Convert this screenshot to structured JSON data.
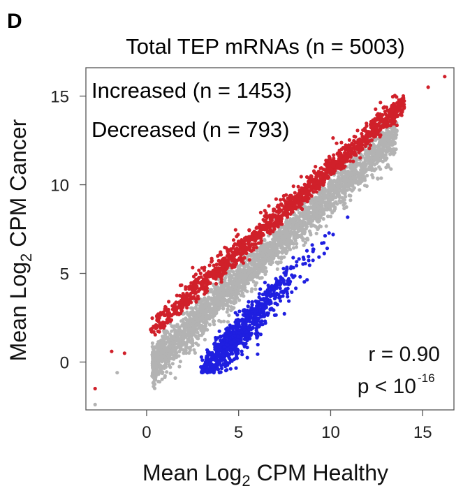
{
  "panel_label": "D",
  "chart_data": {
    "type": "scatter",
    "title": "Total TEP mRNAs (n = 5003)",
    "xlabel": {
      "prefix": "Mean Log",
      "sub": "2",
      "suffix": " CPM Healthy"
    },
    "ylabel": {
      "prefix": "Mean Log",
      "sub": "2",
      "suffix": " CPM Cancer"
    },
    "xlim": [
      -3.3,
      16.7
    ],
    "ylim": [
      -2.7,
      16.6
    ],
    "xticks": [
      0,
      5,
      10,
      15
    ],
    "yticks": [
      0,
      5,
      10,
      15
    ],
    "grid": false,
    "legend_position": "top-left",
    "series": [
      {
        "name": "Increased (n = 1453)",
        "color": "#d0202a",
        "count": 1453
      },
      {
        "name": "Decreased (n = 793)",
        "color": "#1f1fe0",
        "count": 793
      },
      {
        "color": "#b3b3b3",
        "count": 2757
      }
    ],
    "highlighted_points": [
      {
        "series": 0,
        "x": -2.8,
        "y": -1.5
      },
      {
        "series": 0,
        "x": 16.2,
        "y": 16.1
      },
      {
        "series": 0,
        "x": 15.3,
        "y": 15.5
      },
      {
        "series": 0,
        "x": -1.9,
        "y": 0.6
      },
      {
        "series": 0,
        "x": -1.2,
        "y": 0.5
      },
      {
        "series": 2,
        "x": -2.8,
        "y": -2.4
      },
      {
        "series": 2,
        "x": -1.6,
        "y": -0.6
      }
    ],
    "annotations": {
      "r_text": "r = 0.90",
      "p_prefix": "p < 10",
      "p_exponent": "-16"
    }
  }
}
